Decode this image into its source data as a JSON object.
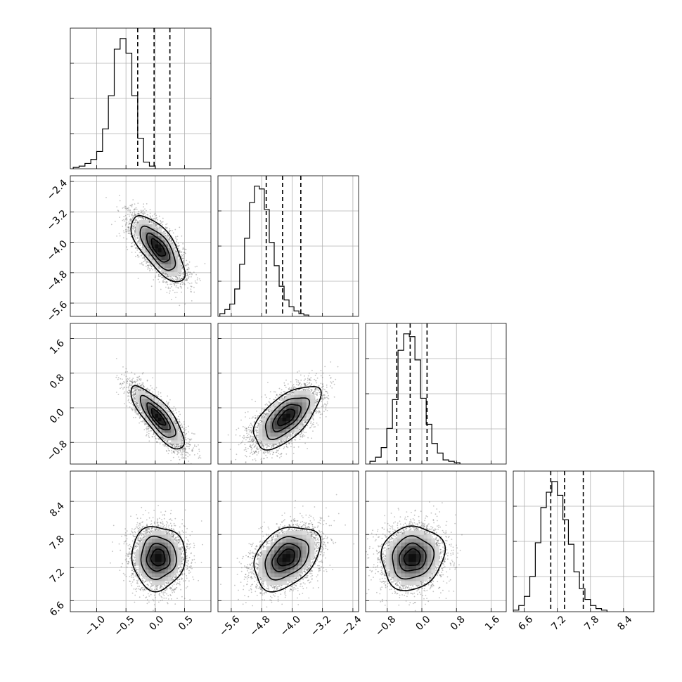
{
  "chart_data": {
    "type": "corner",
    "parameters": [
      {
        "range": [
          -1.45,
          0.95
        ],
        "ticks": [
          -1.0,
          -0.5,
          0.0,
          0.5
        ],
        "tick_labels": [
          "−1.0",
          "−0.5",
          "0.0",
          "0.5"
        ],
        "mean": 0.05,
        "sd": 0.22,
        "quantiles": [
          -0.3,
          -0.02,
          0.25
        ],
        "hist": {
          "edges_start": -1.4,
          "bin_width": 0.1,
          "counts": [
            1,
            2,
            4,
            7,
            13,
            30,
            55,
            90,
            98,
            87,
            55,
            23,
            5,
            2
          ]
        }
      },
      {
        "range": [
          -5.95,
          -2.25
        ],
        "ticks": [
          -5.6,
          -4.8,
          -4.0,
          -3.2,
          -2.4
        ],
        "tick_labels": [
          "−5.6",
          "−4.8",
          "−4.0",
          "−3.2",
          "−2.4"
        ],
        "mean": -4.15,
        "sd": 0.42,
        "quantiles": [
          -4.68,
          -4.25,
          -3.77
        ],
        "hist": {
          "edges_start": -5.9,
          "bin_width": 0.13,
          "counts": [
            2,
            5,
            9,
            20,
            38,
            57,
            83,
            95,
            93,
            78,
            54,
            37,
            22,
            12,
            7,
            4,
            2,
            1
          ]
        }
      },
      {
        "range": [
          -1.3,
          1.95
        ],
        "ticks": [
          -0.8,
          0.0,
          0.8,
          1.6
        ],
        "tick_labels": [
          "−0.8",
          "0.0",
          "0.8",
          "1.6"
        ],
        "mean": -0.22,
        "sd": 0.35,
        "quantiles": [
          -0.58,
          -0.27,
          0.12
        ],
        "hist": {
          "edges_start": -1.2,
          "bin_width": 0.13,
          "counts": [
            2,
            5,
            12,
            26,
            47,
            83,
            95,
            93,
            76,
            48,
            29,
            15,
            8,
            3,
            2,
            1
          ]
        }
      },
      {
        "range": [
          6.4,
          8.95
        ],
        "ticks": [
          6.6,
          7.2,
          7.8,
          8.4
        ],
        "tick_labels": [
          "6.6",
          "7.2",
          "7.8",
          "8.4"
        ],
        "mean": 7.38,
        "sd": 0.28,
        "quantiles": [
          7.08,
          7.33,
          7.67
        ],
        "hist": {
          "edges_start": 6.4,
          "bin_width": 0.1,
          "counts": [
            1,
            4,
            10,
            23,
            45,
            68,
            78,
            85,
            76,
            60,
            44,
            26,
            15,
            8,
            4,
            2,
            1
          ]
        }
      }
    ],
    "pairs": [
      {
        "row": 1,
        "col": 0,
        "correlation": -0.7
      },
      {
        "row": 2,
        "col": 0,
        "correlation": -0.8
      },
      {
        "row": 2,
        "col": 1,
        "correlation": 0.62
      },
      {
        "row": 3,
        "col": 0,
        "correlation": 0.0
      },
      {
        "row": 3,
        "col": 1,
        "correlation": 0.35
      },
      {
        "row": 3,
        "col": 2,
        "correlation": 0.1
      }
    ],
    "sample_count": 4000,
    "contour_levels_sigma": [
      0.5,
      1.0,
      1.5,
      2.0
    ],
    "quantile_linestyle": "dashed",
    "grid": true
  }
}
